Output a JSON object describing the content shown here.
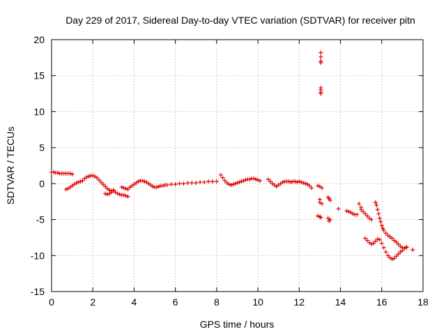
{
  "chart_data": {
    "type": "scatter",
    "title": "Day 229 of 2017, Sidereal Day-to-day VTEC variation (SDTVAR) for receiver pitn",
    "xlabel": "GPS time / hours",
    "ylabel": "SDTVAR / TECUs",
    "xlim": [
      0,
      18
    ],
    "ylim": [
      -15,
      20
    ],
    "xticks": [
      "0",
      "2",
      "4",
      "6",
      "8",
      "10",
      "12",
      "14",
      "16",
      "18"
    ],
    "yticks": [
      "-15",
      "-10",
      "-5",
      "0",
      "5",
      "10",
      "15",
      "20"
    ],
    "grid": true,
    "marker": "+",
    "color": "#e00000",
    "series": [
      {
        "name": "seg1",
        "x": [
          0.0,
          0.1,
          0.2,
          0.3,
          0.4,
          0.5,
          0.6,
          0.7,
          0.8,
          0.9,
          1.0
        ],
        "y": [
          1.6,
          1.6,
          1.5,
          1.5,
          1.4,
          1.4,
          1.4,
          1.4,
          1.4,
          1.4,
          1.3
        ]
      },
      {
        "name": "seg2",
        "x": [
          0.7,
          0.8,
          0.9,
          1.0,
          1.1,
          1.2,
          1.3,
          1.4,
          1.5,
          1.6,
          1.7,
          1.8,
          1.9,
          2.0,
          2.1,
          2.2,
          2.3,
          2.4,
          2.5,
          2.6,
          2.7,
          2.8,
          2.9,
          3.0
        ],
        "y": [
          -0.8,
          -0.7,
          -0.5,
          -0.3,
          -0.1,
          0.1,
          0.2,
          0.3,
          0.4,
          0.7,
          0.9,
          1.0,
          1.1,
          1.1,
          1.0,
          0.8,
          0.5,
          0.2,
          -0.1,
          -0.4,
          -0.7,
          -0.9,
          -1.0,
          -0.9
        ]
      },
      {
        "name": "seg3",
        "x": [
          2.6,
          2.7,
          2.8,
          2.9,
          3.0,
          3.1,
          3.2,
          3.3,
          3.4,
          3.5,
          3.6,
          3.7
        ],
        "y": [
          -1.4,
          -1.5,
          -1.4,
          -1.2,
          -1.0,
          -1.2,
          -1.4,
          -1.5,
          -1.6,
          -1.6,
          -1.7,
          -1.8
        ]
      },
      {
        "name": "seg4",
        "x": [
          3.4,
          3.5,
          3.6,
          3.7,
          3.8,
          3.9,
          4.0,
          4.1,
          4.2,
          4.3,
          4.4,
          4.5,
          4.6,
          4.7,
          4.8,
          4.9,
          5.0,
          5.1,
          5.2,
          5.3,
          5.4,
          5.5,
          5.6,
          5.8,
          6.0,
          6.2,
          6.4,
          6.6,
          6.8,
          7.0,
          7.2,
          7.4,
          7.6,
          7.8,
          8.0
        ],
        "y": [
          -0.5,
          -0.6,
          -0.7,
          -0.8,
          -0.5,
          -0.3,
          -0.1,
          0.1,
          0.3,
          0.4,
          0.4,
          0.3,
          0.2,
          0.0,
          -0.2,
          -0.4,
          -0.5,
          -0.5,
          -0.4,
          -0.3,
          -0.3,
          -0.2,
          -0.2,
          -0.1,
          -0.1,
          0.0,
          0.0,
          0.1,
          0.1,
          0.1,
          0.2,
          0.2,
          0.3,
          0.3,
          0.3
        ]
      },
      {
        "name": "seg5",
        "x": [
          8.2,
          8.3,
          8.4,
          8.5,
          8.6,
          8.7,
          8.8,
          8.9,
          9.0,
          9.1,
          9.2,
          9.3,
          9.4,
          9.5,
          9.6,
          9.7,
          9.8,
          9.9,
          10.0,
          10.1
        ],
        "y": [
          1.2,
          0.8,
          0.4,
          0.1,
          -0.1,
          -0.2,
          -0.1,
          0.0,
          0.1,
          0.2,
          0.3,
          0.4,
          0.5,
          0.6,
          0.6,
          0.7,
          0.7,
          0.6,
          0.5,
          0.4
        ]
      },
      {
        "name": "seg6",
        "x": [
          10.5,
          10.6,
          10.7,
          10.8,
          10.9,
          11.0,
          11.1,
          11.2,
          11.3,
          11.4,
          11.5,
          11.6,
          11.7,
          11.8,
          11.9,
          12.0,
          12.1,
          12.2,
          12.3,
          12.4,
          12.5,
          12.6
        ],
        "y": [
          0.6,
          0.3,
          0.0,
          -0.2,
          -0.4,
          -0.2,
          0.0,
          0.2,
          0.3,
          0.3,
          0.3,
          0.2,
          0.3,
          0.3,
          0.2,
          0.3,
          0.2,
          0.1,
          0.0,
          -0.1,
          -0.3,
          -0.6
        ]
      },
      {
        "name": "seg7",
        "x": [
          12.9,
          13.0,
          13.1,
          13.0,
          13.0,
          13.1,
          12.9,
          13.0,
          13.05
        ],
        "y": [
          -0.3,
          -0.4,
          -0.6,
          -2.2,
          -2.6,
          -2.8,
          -4.5,
          -4.6,
          -4.7
        ]
      },
      {
        "name": "seg8",
        "x": [
          13.05,
          13.05,
          13.05,
          13.05,
          13.05,
          13.05,
          13.05,
          13.05
        ],
        "y": [
          18.2,
          17.6,
          17.0,
          16.8,
          13.3,
          13.0,
          12.7,
          12.5
        ]
      },
      {
        "name": "seg9",
        "x": [
          13.4,
          13.45,
          13.5,
          13.4,
          13.5,
          13.45
        ],
        "y": [
          -1.9,
          -2.1,
          -2.3,
          -4.8,
          -5.0,
          -5.2
        ]
      },
      {
        "name": "seg10",
        "x": [
          13.9,
          14.3,
          14.4,
          14.5,
          14.6,
          14.7,
          14.8,
          14.9,
          15.0
        ],
        "y": [
          -3.5,
          -3.8,
          -3.9,
          -4.0,
          -4.2,
          -4.3,
          -4.3,
          -2.8,
          -3.3
        ]
      },
      {
        "name": "seg11",
        "x": [
          15.0,
          15.1,
          15.2,
          15.3,
          15.4,
          15.5
        ],
        "y": [
          -3.6,
          -3.9,
          -4.2,
          -4.5,
          -4.8,
          -5.0
        ]
      },
      {
        "name": "seg12",
        "x": [
          15.7,
          15.75,
          15.8,
          15.85,
          15.9,
          15.95,
          16.0,
          16.05,
          16.1,
          16.2,
          16.3,
          16.4,
          16.5,
          16.6,
          16.7,
          16.8,
          16.9,
          17.0,
          17.1,
          17.2
        ],
        "y": [
          -2.6,
          -3.0,
          -3.6,
          -4.2,
          -4.8,
          -5.3,
          -5.8,
          -6.2,
          -6.5,
          -6.9,
          -7.2,
          -7.4,
          -7.6,
          -7.9,
          -8.1,
          -8.4,
          -8.7,
          -8.9,
          -9.0,
          -8.8
        ]
      },
      {
        "name": "seg13",
        "x": [
          15.2,
          15.3,
          15.4,
          15.5,
          15.6,
          15.7,
          15.8,
          15.9,
          16.0,
          16.1,
          16.2,
          16.3,
          16.4,
          16.5,
          16.6,
          16.7,
          16.8,
          16.9,
          17.0,
          17.1,
          17.2,
          17.5
        ],
        "y": [
          -7.6,
          -7.9,
          -8.2,
          -8.4,
          -8.3,
          -8.0,
          -7.7,
          -7.8,
          -8.3,
          -8.9,
          -9.5,
          -10.0,
          -10.3,
          -10.5,
          -10.4,
          -10.1,
          -9.8,
          -9.5,
          -9.3,
          -9.0,
          -8.9,
          -9.2
        ]
      }
    ]
  }
}
